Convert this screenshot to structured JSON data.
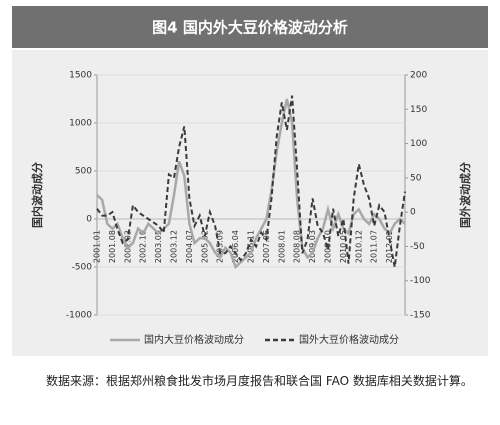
{
  "chart_data": {
    "type": "line",
    "title": "图4 国内外大豆价格波动分析",
    "ylabel": "国内波动成分",
    "y2label": "国外波动成分",
    "categories": [
      "2001.01",
      null,
      null,
      "2001.08",
      null,
      null,
      "2002.03",
      null,
      null,
      "2002.10",
      null,
      null,
      "2003.05",
      null,
      null,
      "2003.12",
      null,
      null,
      "2004.07",
      null,
      null,
      "2005.02",
      null,
      null,
      "2005.09",
      null,
      null,
      "2006.04",
      null,
      null,
      "2006.11",
      null,
      null,
      "2007.06",
      null,
      null,
      "2008.01",
      null,
      null,
      "2008.08",
      null,
      null,
      "2009.03",
      null,
      null,
      "2009.10",
      null,
      null,
      "2010.05",
      null,
      null,
      "2010.12",
      null,
      null,
      "2011.07",
      null,
      null,
      "2012.02",
      null,
      null,
      null
    ],
    "series": [
      {
        "name": "国内大豆价格波动成分",
        "color": "#a8a8a8",
        "dash": false,
        "values": [
          250,
          200,
          -50,
          -100,
          -50,
          -200,
          -300,
          -250,
          -100,
          -150,
          -50,
          -100,
          -150,
          -100,
          -50,
          250,
          600,
          450,
          -50,
          -250,
          -200,
          -200,
          -250,
          -350,
          -400,
          -300,
          -350,
          -500,
          -450,
          -400,
          -350,
          -200,
          -100,
          0,
          300,
          700,
          1000,
          1250,
          1000,
          200,
          -300,
          -400,
          -350,
          -200,
          -100,
          100,
          -100,
          50,
          -100,
          -150,
          50,
          100,
          0,
          -50,
          50,
          0,
          -100,
          -150,
          -50,
          0,
          -50
        ]
      },
      {
        "name": "国外大豆价格波动成分",
        "color": "#3a3a3a",
        "dash": true,
        "axis": "y2",
        "values": [
          5,
          -5,
          -5,
          0,
          -25,
          -45,
          -40,
          10,
          0,
          -5,
          -10,
          -15,
          -20,
          -30,
          55,
          50,
          95,
          125,
          20,
          -20,
          -5,
          -35,
          0,
          -20,
          -60,
          -60,
          -50,
          -60,
          -70,
          -60,
          -40,
          -50,
          -30,
          -40,
          20,
          110,
          160,
          120,
          170,
          60,
          -60,
          -40,
          20,
          -20,
          -30,
          -55,
          5,
          -35,
          -10,
          -75,
          20,
          70,
          40,
          20,
          -20,
          10,
          0,
          -40,
          -80,
          -20,
          30
        ]
      }
    ],
    "ylim": [
      -1000,
      1500
    ],
    "yticks": [
      -1000,
      -500,
      0,
      500,
      1000,
      1500
    ],
    "y2lim": [
      -150,
      200
    ],
    "y2ticks": [
      -150,
      -100,
      -50,
      0,
      50,
      100,
      150,
      200
    ],
    "grid": true
  },
  "caption": "数据来源：根据郑州粮食批发市场月度报告和联合国 FAO 数据库相关数据计算。"
}
